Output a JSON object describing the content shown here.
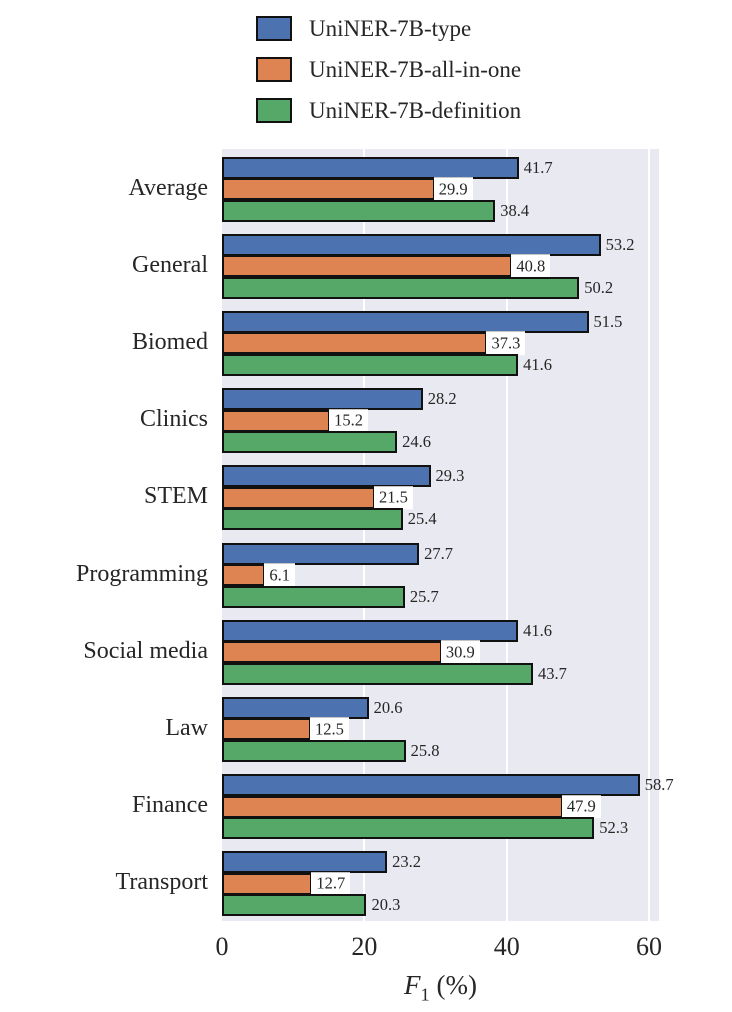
{
  "chart_data": {
    "type": "bar",
    "orientation": "horizontal",
    "title": "",
    "xlabel": "F₁ (%)",
    "xlabel_parts": {
      "sym": "F",
      "sub": "1",
      "unit": "(%)"
    },
    "xlim": [
      0,
      61.4
    ],
    "xticks": [
      0,
      20,
      40,
      60
    ],
    "grid": "vertical-major",
    "legend_position": "top",
    "categories": [
      "Average",
      "General",
      "Biomed",
      "Clinics",
      "STEM",
      "Programming",
      "Social media",
      "Law",
      "Finance",
      "Transport"
    ],
    "series": [
      {
        "name": "UniNER-7B-type",
        "color": "#4C72B0",
        "values": [
          41.7,
          53.2,
          51.5,
          28.2,
          29.3,
          27.7,
          41.6,
          20.6,
          58.7,
          23.2
        ]
      },
      {
        "name": "UniNER-7B-all-in-one",
        "color": "#DD8452",
        "values": [
          29.9,
          40.8,
          37.3,
          15.2,
          21.5,
          6.1,
          30.9,
          12.5,
          47.9,
          12.7
        ]
      },
      {
        "name": "UniNER-7B-definition",
        "color": "#55A868",
        "values": [
          38.4,
          50.2,
          41.6,
          24.6,
          25.4,
          25.7,
          43.7,
          25.8,
          52.3,
          20.3
        ]
      }
    ],
    "colors": {
      "plot_background": "#E9E9F1",
      "grid_line": "#FFFFFF",
      "bar_edge": "#111111",
      "text": "#262626",
      "value_label_box_background": "#FFFFFF"
    }
  }
}
